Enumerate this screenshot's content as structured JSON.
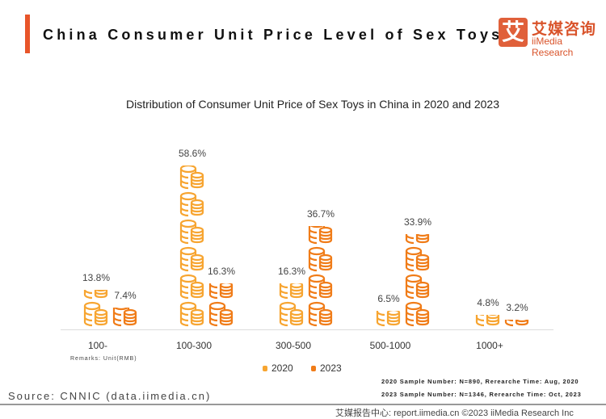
{
  "header": {
    "title": "China Consumer Unit Price Level of Sex Toys",
    "logo_mark": "艾",
    "logo_cn": "艾媒咨询",
    "logo_en": "iiMedia Research"
  },
  "chart_data": {
    "type": "bar",
    "title": "Distribution of Consumer Unit Price of Sex Toys in China in 2020 and 2023",
    "categories": [
      "100-",
      "100-300",
      "300-500",
      "500-1000",
      "1000+"
    ],
    "series": [
      {
        "name": "2020",
        "values": [
          13.8,
          58.6,
          16.3,
          6.5,
          4.8
        ],
        "labels": [
          "13.8%",
          "58.6%",
          "16.3%",
          "6.5%",
          "4.8%"
        ],
        "color": "#f7a531"
      },
      {
        "name": "2023",
        "values": [
          7.4,
          16.3,
          36.7,
          33.9,
          3.2
        ],
        "labels": [
          "7.4%",
          "16.3%",
          "36.7%",
          "33.9%",
          "3.2%"
        ],
        "color": "#f07c18"
      }
    ],
    "ylim": [
      0,
      60
    ],
    "grid": false,
    "legend": "bottom",
    "mark": "coin-stack-icon"
  },
  "remarks": "Remarks: Unit(RMB)",
  "notes": [
    "2020 Sample Number: N=890, Rerearche Time: Aug, 2020",
    "2023 Sample Number: N=1346, Rerearche Time: Oct, 2023"
  ],
  "source": "Source: CNNIC (data.iimedia.cn)",
  "footer": "艾媒报告中心: report.iimedia.cn ©2023 iiMedia Research Inc"
}
